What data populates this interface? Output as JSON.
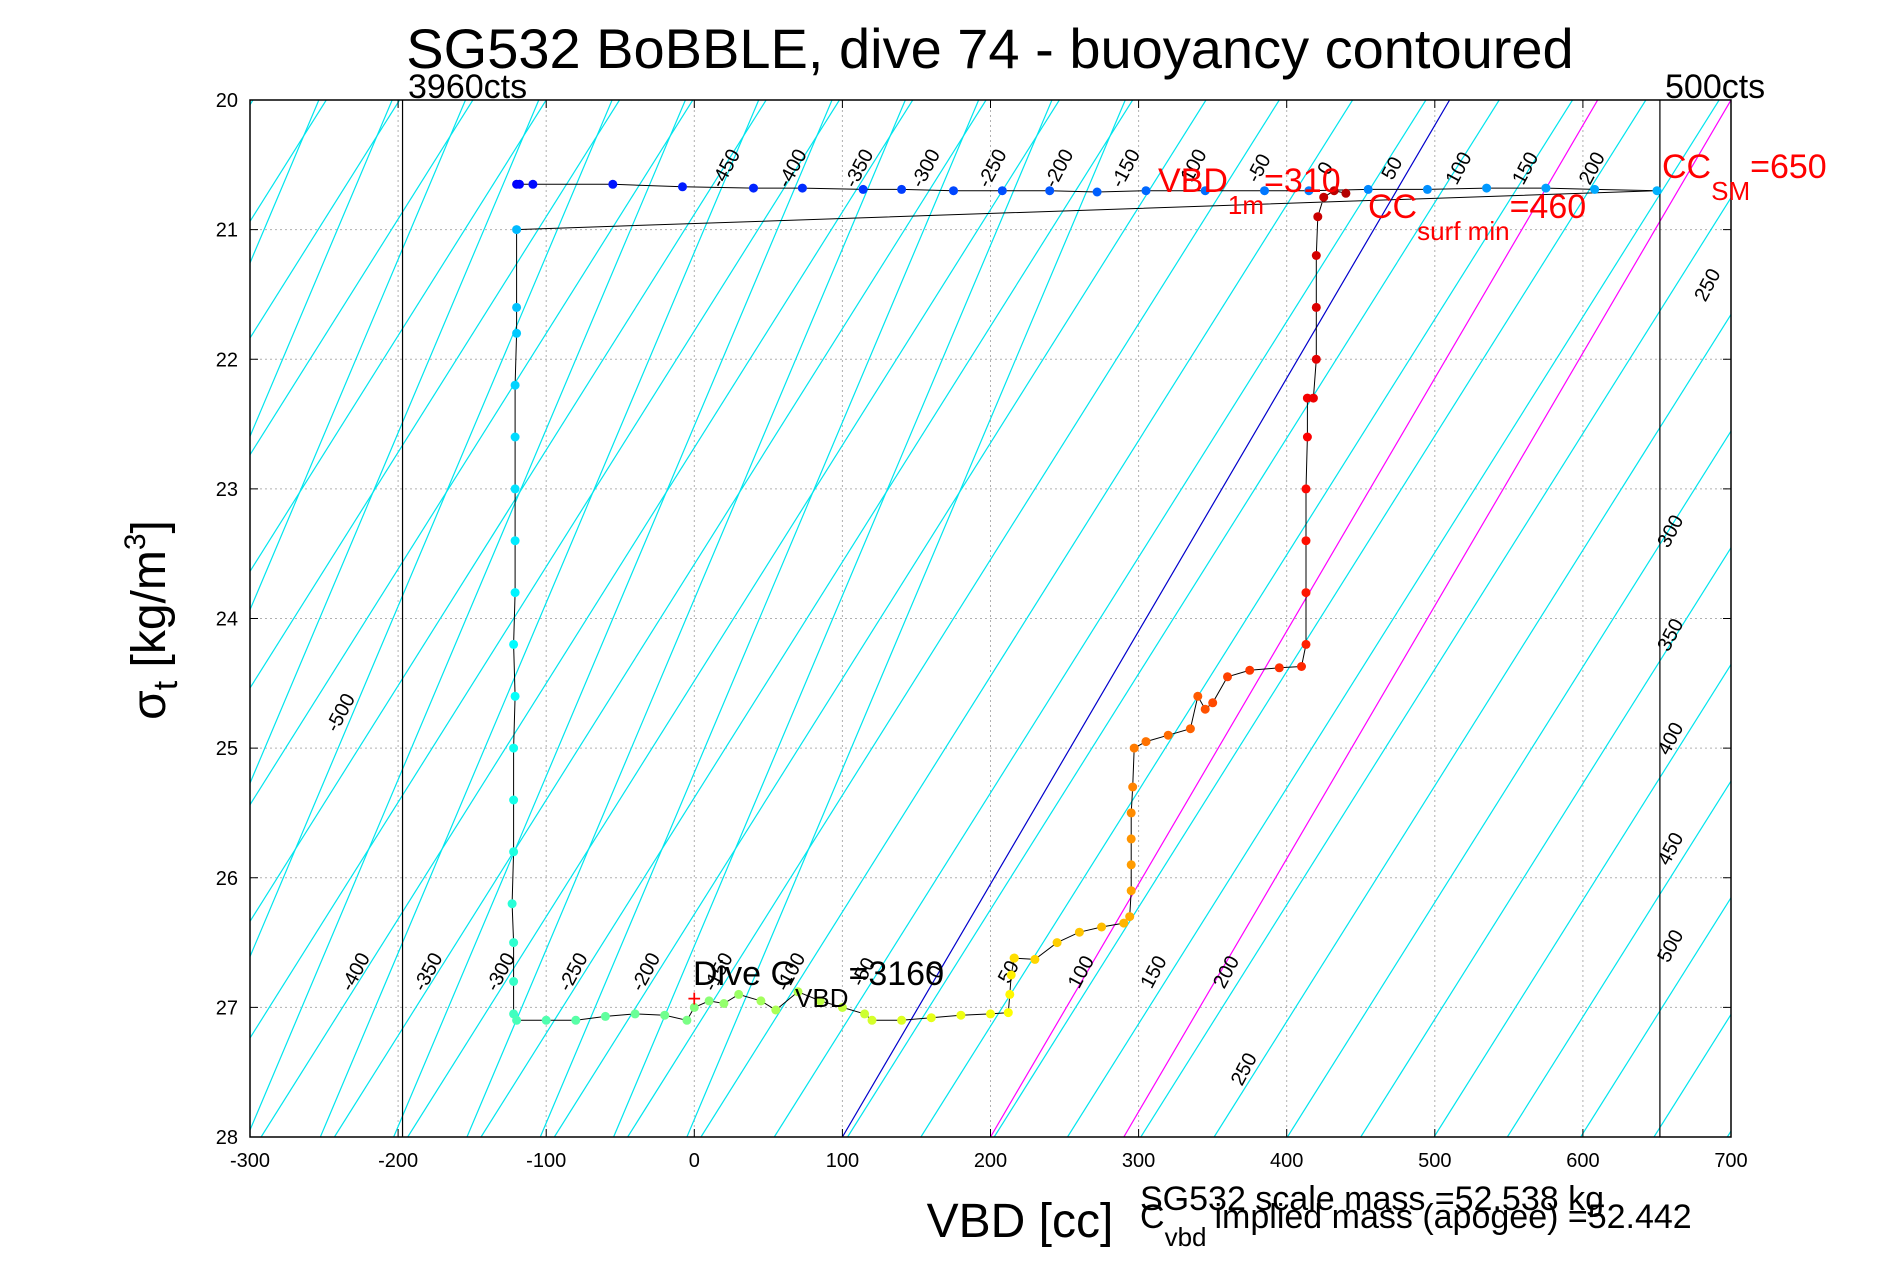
{
  "chart_data": {
    "type": "scatter",
    "title": "SG532 BoBBLE, dive 74 - buoyancy contoured",
    "xlabel": "VBD [cc]",
    "ylabel_main": "σ",
    "ylabel_sub": "t",
    "ylabel_rest": "[kg/m",
    "ylabel_sup": "3",
    "ylabel_close": "]",
    "xlim": [
      -300,
      700
    ],
    "ylim": [
      20,
      28
    ],
    "y_reversed": true,
    "grid": true,
    "xticks": [
      "-300",
      "-200",
      "-100",
      "0",
      "100",
      "200",
      "300",
      "400",
      "500",
      "600",
      "700"
    ],
    "yticks": [
      "20",
      "21",
      "22",
      "23",
      "24",
      "25",
      "26",
      "27",
      "28"
    ],
    "buoyancy_contour_levels": [
      -500,
      -450,
      -400,
      -350,
      -300,
      -250,
      -200,
      -150,
      -100,
      -50,
      0,
      50,
      100,
      150,
      200,
      250,
      300,
      350,
      400,
      450,
      500
    ],
    "contour_color": "#00e5ee",
    "contour_labels_top": [
      "-450",
      "-400",
      "-350",
      "-300",
      "-250",
      "-200",
      "-150",
      "-100",
      "-50",
      "0",
      "50",
      "100",
      "150",
      "200"
    ],
    "contour_labels_bottom": [
      "-400",
      "-350",
      "-300",
      "-250",
      "-200",
      "-150",
      "-100",
      "-50",
      "0",
      "50",
      "100",
      "150",
      "200"
    ],
    "contour_labels_right": [
      "250",
      "300",
      "350",
      "400",
      "450",
      "500"
    ],
    "contour_labels_left": [
      "-500"
    ],
    "extra_labels": [
      "250"
    ],
    "vertical_limits": [
      {
        "x": -197,
        "label": "3960cts"
      },
      {
        "x": 652,
        "label": "500cts"
      }
    ],
    "reference_lines": [
      {
        "name": "VBD 1m",
        "color": "#0000cc"
      },
      {
        "name": "CC surf min",
        "color": "#ff00ff"
      },
      {
        "name": "CC SM",
        "color": "#ff00ff"
      }
    ],
    "annotations": {
      "vbd1m_main": "VBD",
      "vbd1m_sub": "1m",
      "vbd1m_value": "=310",
      "ccsurf_main": "CC",
      "ccsurf_sub": "surf min",
      "ccsurf_value": "=460",
      "ccsm_main": "CC",
      "ccsm_sub": "SM",
      "ccsm_value": "=650",
      "dive_main": "Dive C",
      "dive_sub": "VBD",
      "dive_value": "=3160",
      "annotation_color": "#ff0000"
    },
    "footer": {
      "scale_mass": "SG532 scale mass =52.538 kg",
      "implied_main": "C",
      "implied_sub": "vbd",
      "implied_rest": "implied mass (apogee) =52.442"
    },
    "series": [
      {
        "segment": "descent",
        "points": [
          [
            -120,
            20.65
          ],
          [
            -118,
            20.65
          ],
          [
            -109,
            20.65
          ],
          [
            -55,
            20.65
          ],
          [
            -8,
            20.67
          ],
          [
            40,
            20.68
          ],
          [
            73,
            20.68
          ],
          [
            114,
            20.69
          ],
          [
            140,
            20.69
          ],
          [
            175,
            20.7
          ],
          [
            208,
            20.7
          ],
          [
            240,
            20.7
          ],
          [
            272,
            20.71
          ],
          [
            305,
            20.7
          ],
          [
            345,
            20.7
          ],
          [
            385,
            20.7
          ],
          [
            415,
            20.7
          ],
          [
            455,
            20.69
          ],
          [
            495,
            20.69
          ],
          [
            535,
            20.68
          ],
          [
            575,
            20.68
          ],
          [
            608,
            20.69
          ],
          [
            650,
            20.7
          ],
          [
            -120,
            21.0
          ],
          [
            -120,
            21.6
          ],
          [
            -120,
            21.8
          ],
          [
            -121,
            22.2
          ],
          [
            -121,
            22.6
          ],
          [
            -121,
            23.0
          ],
          [
            -121,
            23.4
          ],
          [
            -121,
            23.8
          ],
          [
            -122,
            24.2
          ],
          [
            -121,
            24.6
          ],
          [
            -122,
            25.0
          ],
          [
            -122,
            25.4
          ],
          [
            -122,
            25.8
          ],
          [
            -123,
            26.2
          ],
          [
            -122,
            26.5
          ],
          [
            -122,
            26.8
          ],
          [
            -122,
            27.05
          ],
          [
            -120,
            27.1
          ],
          [
            -100,
            27.1
          ],
          [
            -80,
            27.1
          ],
          [
            -60,
            27.07
          ],
          [
            -40,
            27.05
          ],
          [
            -20,
            27.06
          ],
          [
            -5,
            27.1
          ],
          [
            0,
            27.0
          ],
          [
            10,
            26.95
          ],
          [
            20,
            26.97
          ],
          [
            30,
            26.9
          ],
          [
            45,
            26.95
          ],
          [
            55,
            27.02
          ],
          [
            70,
            26.88
          ],
          [
            85,
            26.95
          ],
          [
            100,
            27.0
          ],
          [
            115,
            27.05
          ],
          [
            120,
            27.1
          ],
          [
            140,
            27.1
          ],
          [
            160,
            27.08
          ],
          [
            180,
            27.06
          ],
          [
            200,
            27.05
          ],
          [
            212,
            27.04
          ],
          [
            213,
            26.9
          ],
          [
            214,
            26.75
          ],
          [
            216,
            26.62
          ]
        ]
      },
      {
        "segment": "ascent",
        "points": [
          [
            216,
            26.62
          ],
          [
            230,
            26.63
          ],
          [
            245,
            26.5
          ],
          [
            260,
            26.42
          ],
          [
            275,
            26.38
          ],
          [
            290,
            26.35
          ],
          [
            294,
            26.3
          ],
          [
            295,
            26.1
          ],
          [
            295,
            25.9
          ],
          [
            295,
            25.7
          ],
          [
            295,
            25.5
          ],
          [
            296,
            25.3
          ],
          [
            297,
            25.0
          ],
          [
            305,
            24.95
          ],
          [
            320,
            24.9
          ],
          [
            335,
            24.85
          ],
          [
            340,
            24.6
          ],
          [
            345,
            24.7
          ],
          [
            350,
            24.65
          ],
          [
            360,
            24.45
          ],
          [
            375,
            24.4
          ],
          [
            395,
            24.38
          ],
          [
            410,
            24.37
          ],
          [
            413,
            24.2
          ],
          [
            413,
            23.8
          ],
          [
            413,
            23.4
          ],
          [
            413,
            23.0
          ],
          [
            414,
            22.6
          ],
          [
            414,
            22.3
          ],
          [
            418,
            22.3
          ],
          [
            420,
            22.0
          ],
          [
            420,
            21.6
          ],
          [
            420,
            21.2
          ],
          [
            421,
            20.9
          ],
          [
            425,
            20.75
          ],
          [
            432,
            20.7
          ],
          [
            440,
            20.72
          ]
        ]
      }
    ],
    "start_marker": {
      "x": 0,
      "y": 26.93,
      "symbol": "+",
      "color": "#ff0000"
    }
  }
}
